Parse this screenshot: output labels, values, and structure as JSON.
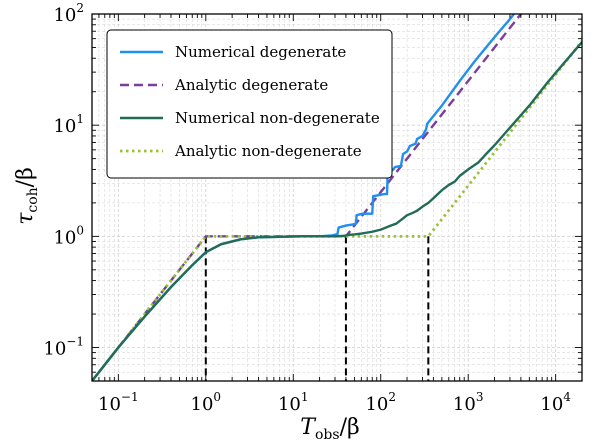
{
  "chart_data": {
    "type": "line",
    "x_scale": "log",
    "y_scale": "log",
    "xlim": [
      0.05,
      20000
    ],
    "ylim": [
      0.05,
      100
    ],
    "grid": true,
    "legend_position": "top-left",
    "xlabel": {
      "main": "T",
      "sub": "obs",
      "tail": "/β"
    },
    "ylabel": {
      "main": "τ",
      "sub": "coh",
      "tail": "/β"
    },
    "x_ticks": [
      {
        "value": 0.1,
        "base": "10",
        "exp": "−1"
      },
      {
        "value": 1,
        "base": "10",
        "exp": "0"
      },
      {
        "value": 10,
        "base": "10",
        "exp": "1"
      },
      {
        "value": 100,
        "base": "10",
        "exp": "2"
      },
      {
        "value": 1000,
        "base": "10",
        "exp": "3"
      },
      {
        "value": 10000,
        "base": "10",
        "exp": "4"
      }
    ],
    "y_ticks": [
      {
        "value": 0.1,
        "base": "10",
        "exp": "−1"
      },
      {
        "value": 1,
        "base": "10",
        "exp": "0"
      },
      {
        "value": 10,
        "base": "10",
        "exp": "1"
      },
      {
        "value": 100,
        "base": "10",
        "exp": "2"
      }
    ],
    "series": [
      {
        "name": "Numerical degenerate",
        "color": "#1f8ff0",
        "style": "solid",
        "x": [
          0.05,
          0.1,
          0.2,
          0.4,
          0.7,
          1,
          1.5,
          2.5,
          4,
          7,
          12,
          20,
          28,
          32,
          33,
          40,
          48,
          52,
          53,
          62,
          70,
          80,
          82,
          110,
          118,
          120,
          140,
          145,
          170,
          180,
          200,
          215,
          250,
          260,
          300,
          330,
          340,
          500,
          800,
          1200,
          2000,
          3000,
          4000
        ],
        "y": [
          0.05,
          0.1,
          0.19,
          0.35,
          0.55,
          0.72,
          0.85,
          0.94,
          0.98,
          0.99,
          1.0,
          1.0,
          1.02,
          1.05,
          1.2,
          1.25,
          1.28,
          1.3,
          1.55,
          1.6,
          1.6,
          1.6,
          2.3,
          2.4,
          2.4,
          3.7,
          4.0,
          4.2,
          4.3,
          5.5,
          5.8,
          6.5,
          6.8,
          7.5,
          8.0,
          9.2,
          10.3,
          15,
          25,
          38,
          62,
          90,
          120
        ]
      },
      {
        "name": "Analytic degenerate",
        "color": "#7b3f99",
        "style": "dashed",
        "x": [
          0.05,
          1,
          40,
          4500
        ],
        "y": [
          0.05,
          1,
          1,
          112.5
        ]
      },
      {
        "name": "Numerical non-degenerate",
        "color": "#226b57",
        "style": "solid",
        "x": [
          0.05,
          0.1,
          0.2,
          0.4,
          0.7,
          1,
          1.5,
          2.5,
          4,
          7,
          12,
          20,
          30,
          38,
          42,
          50,
          60,
          80,
          100,
          130,
          150,
          180,
          200,
          230,
          260,
          300,
          350,
          400,
          500,
          600,
          700,
          800,
          1000,
          1300,
          1600,
          2000,
          3000,
          5000,
          8000,
          12000,
          20000
        ],
        "y": [
          0.05,
          0.1,
          0.19,
          0.35,
          0.55,
          0.72,
          0.85,
          0.94,
          0.98,
          0.99,
          1.0,
          1.0,
          1.0,
          1.01,
          1.03,
          1.04,
          1.06,
          1.1,
          1.15,
          1.25,
          1.3,
          1.45,
          1.55,
          1.62,
          1.7,
          1.85,
          2.0,
          2.2,
          2.6,
          2.9,
          3.1,
          3.5,
          4.0,
          4.6,
          5.5,
          6.6,
          9.5,
          15,
          24,
          35,
          56
        ]
      },
      {
        "name": "Analytic non-degenerate",
        "color": "#99c23a",
        "style": "dotted",
        "x": [
          0.05,
          1,
          350,
          20000
        ],
        "y": [
          0.05,
          1,
          1,
          57.1
        ]
      }
    ],
    "vertical_markers": [
      {
        "x": 1,
        "y_top": 1
      },
      {
        "x": 40,
        "y_top": 1
      },
      {
        "x": 350,
        "y_top": 1
      }
    ]
  }
}
